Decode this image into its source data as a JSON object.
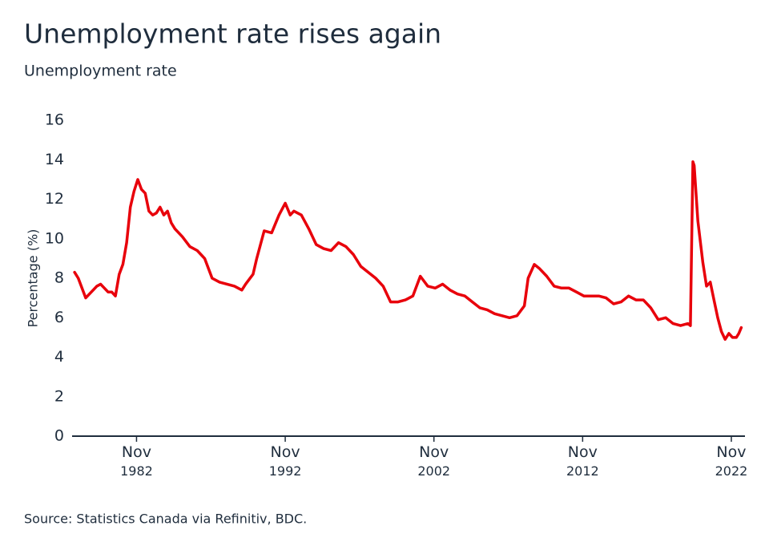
{
  "chart_data": {
    "type": "line",
    "title": "Unemployment rate rises again",
    "subtitle": "Unemployment rate",
    "y_label": "Percentage (%)",
    "source": "Source: Statistics Canada via Refinitiv, BDC.",
    "color": "#e8000b",
    "grid": false,
    "x": [
      "1978-09",
      "1978-12",
      "1979-06",
      "1979-12",
      "1980-03",
      "1980-06",
      "1980-12",
      "1981-03",
      "1981-06",
      "1981-09",
      "1981-12",
      "1982-03",
      "1982-06",
      "1982-09",
      "1982-12",
      "1983-03",
      "1983-06",
      "1983-09",
      "1983-12",
      "1984-03",
      "1984-06",
      "1984-09",
      "1984-12",
      "1985-03",
      "1985-06",
      "1985-12",
      "1986-06",
      "1986-12",
      "1987-06",
      "1987-12",
      "1988-06",
      "1988-12",
      "1989-06",
      "1989-12",
      "1990-03",
      "1990-09",
      "1990-12",
      "1991-06",
      "1991-12",
      "1992-06",
      "1992-11",
      "1993-03",
      "1993-06",
      "1993-12",
      "1994-06",
      "1994-12",
      "1995-06",
      "1995-12",
      "1996-06",
      "1996-12",
      "1997-06",
      "1997-12",
      "1998-06",
      "1998-12",
      "1999-06",
      "1999-12",
      "2000-06",
      "2000-12",
      "2001-06",
      "2001-12",
      "2002-06",
      "2002-12",
      "2003-06",
      "2003-12",
      "2004-06",
      "2004-12",
      "2005-06",
      "2005-12",
      "2006-06",
      "2006-12",
      "2007-06",
      "2007-12",
      "2008-06",
      "2008-12",
      "2009-03",
      "2009-08",
      "2009-12",
      "2010-06",
      "2010-12",
      "2011-06",
      "2011-12",
      "2012-06",
      "2012-12",
      "2013-06",
      "2013-12",
      "2014-06",
      "2014-12",
      "2015-06",
      "2015-12",
      "2016-06",
      "2016-12",
      "2017-06",
      "2017-12",
      "2018-06",
      "2018-12",
      "2019-06",
      "2019-12",
      "2020-02",
      "2020-04",
      "2020-05",
      "2020-08",
      "2020-12",
      "2021-03",
      "2021-06",
      "2021-09",
      "2021-12",
      "2022-03",
      "2022-06",
      "2022-09",
      "2022-12",
      "2023-03",
      "2023-05",
      "2023-07"
    ],
    "values": [
      8.3,
      8.0,
      7.0,
      7.4,
      7.6,
      7.7,
      7.3,
      7.3,
      7.1,
      8.2,
      8.7,
      9.8,
      11.6,
      12.4,
      13.0,
      12.5,
      12.3,
      11.4,
      11.2,
      11.3,
      11.6,
      11.2,
      11.4,
      10.8,
      10.5,
      10.1,
      9.6,
      9.4,
      9.0,
      8.0,
      7.8,
      7.7,
      7.6,
      7.4,
      7.7,
      8.2,
      9.0,
      10.4,
      10.3,
      11.2,
      11.8,
      11.2,
      11.4,
      11.2,
      10.5,
      9.7,
      9.5,
      9.4,
      9.8,
      9.6,
      9.2,
      8.6,
      8.3,
      8.0,
      7.6,
      6.8,
      6.8,
      6.9,
      7.1,
      8.1,
      7.6,
      7.5,
      7.7,
      7.4,
      7.2,
      7.1,
      6.8,
      6.5,
      6.4,
      6.2,
      6.1,
      6.0,
      6.1,
      6.6,
      8.0,
      8.7,
      8.5,
      8.1,
      7.6,
      7.5,
      7.5,
      7.3,
      7.1,
      7.1,
      7.1,
      7.0,
      6.7,
      6.8,
      7.1,
      6.9,
      6.9,
      6.5,
      5.9,
      6.0,
      5.7,
      5.6,
      5.7,
      5.6,
      13.9,
      13.7,
      10.9,
      8.8,
      7.6,
      7.8,
      6.9,
      6.0,
      5.3,
      4.9,
      5.2,
      5.0,
      5.0,
      5.2,
      5.5
    ],
    "xlim": [
      "1978-07",
      "2023-10"
    ],
    "xticks": [
      {
        "value": "1982-11",
        "label": "Nov 1982"
      },
      {
        "value": "1992-11",
        "label": "Nov 1992"
      },
      {
        "value": "2002-11",
        "label": "Nov 2002"
      },
      {
        "value": "2012-11",
        "label": "Nov 2012"
      },
      {
        "value": "2022-11",
        "label": "Nov 2022"
      }
    ],
    "ylim": [
      0,
      16
    ],
    "yticks": [
      0,
      2,
      4,
      6,
      8,
      10,
      12,
      14,
      16
    ]
  }
}
